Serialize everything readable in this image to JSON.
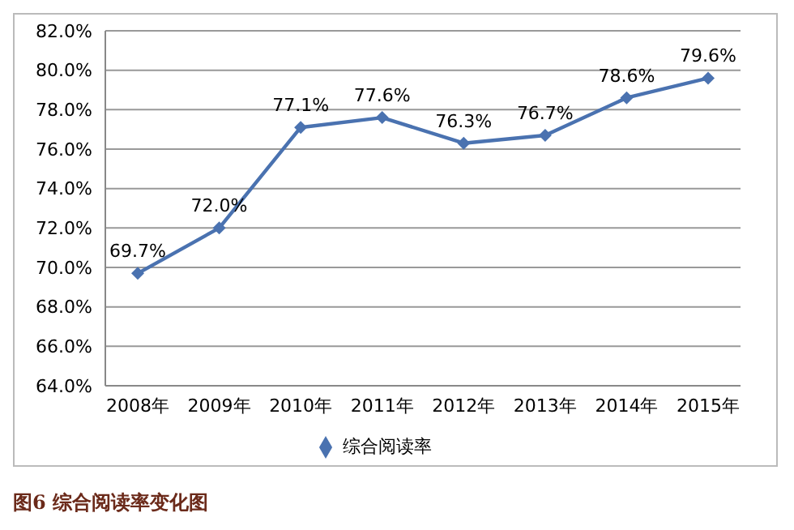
{
  "chart_data": {
    "type": "line",
    "categories": [
      "2008年",
      "2009年",
      "2010年",
      "2011年",
      "2012年",
      "2013年",
      "2014年",
      "2015年"
    ],
    "series": [
      {
        "name": "综合阅读率",
        "color": "#4a72b0",
        "values": [
          69.7,
          72.0,
          77.1,
          77.6,
          76.3,
          76.7,
          78.6,
          79.6
        ],
        "value_labels": [
          "69.7%",
          "72.0%",
          "77.1%",
          "77.6%",
          "76.3%",
          "76.7%",
          "78.6%",
          "79.6%"
        ]
      }
    ],
    "ylim": [
      64,
      82
    ],
    "yticks": [
      {
        "value": 64,
        "label": "64.0%"
      },
      {
        "value": 66,
        "label": "66.0%"
      },
      {
        "value": 68,
        "label": "68.0%"
      },
      {
        "value": 70,
        "label": "70.0%"
      },
      {
        "value": 72,
        "label": "72.0%"
      },
      {
        "value": 74,
        "label": "74.0%"
      },
      {
        "value": 76,
        "label": "76.0%"
      },
      {
        "value": 78,
        "label": "78.0%"
      },
      {
        "value": 80,
        "label": "80.0%"
      },
      {
        "value": 82,
        "label": "82.0%"
      }
    ],
    "grid": "y",
    "legend": "bottom",
    "marker": "diamond",
    "line_style": "solid",
    "annotations": [
      "图6  综合阅读率变化图"
    ]
  }
}
